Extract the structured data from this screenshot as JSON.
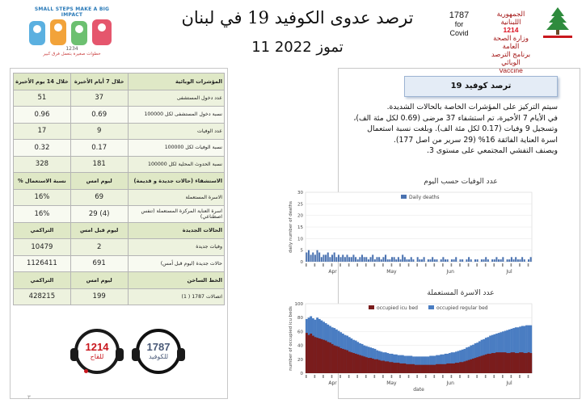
{
  "header": {
    "title": "ترصد عدوى الكوفيد 19 في لبنان",
    "date": "11 تموز 2022",
    "covid_hotline_label": "1787",
    "covid_for": "for",
    "covid_word": "Covid",
    "vaccine_hotline_label": "1214",
    "vaccine_word": "Vaccine",
    "ministry_line1": "الجمهورية اللبنانية",
    "ministry_line2": "وزارة الصحة العامة",
    "ministry_line3": "برنامج الترصد الوبائي",
    "campaign_top": "SMALL STEPS MAKE A BIG IMPACT",
    "campaign_bottom": "خطوات صغيرة بتعمل فرق كبير",
    "campaign_number": "1234"
  },
  "table": {
    "header": {
      "label": "المؤشرات الوبائية",
      "col7": "خلال 7 أيام الأخيرة",
      "col14": "خلال 14 يوم الأخيرة"
    },
    "rows": [
      {
        "label": "عدد دخول المستشفى",
        "v7": "37",
        "v14": "51"
      },
      {
        "label": "نسبة دخول المستشفى لكل 100000",
        "v7": "0.69",
        "v14": "0.96"
      },
      {
        "label": "عدد الوفيات",
        "v7": "9",
        "v14": "17"
      },
      {
        "label": "نسبة الوفيات لكل 100000",
        "v7": "0.17",
        "v14": "0.32"
      },
      {
        "label": "نسبة الحدوث المحلية لكل 100000",
        "v7": "181",
        "v14": "328"
      }
    ],
    "hosp_header": {
      "label": "الاستشفاء (حالات جديدة و قديمة)",
      "col7": "ليوم امس",
      "col14": "% نسبة الاستعمال"
    },
    "hosp_rows": [
      {
        "label": "الاسرة المستعملة",
        "v7": "69",
        "v14": "16%"
      },
      {
        "label": "اسرة العناية المركزة المستعملة (تنفس اصطناعي)",
        "v7": "29 (4)",
        "v14": "16%"
      }
    ],
    "cases_header": {
      "label": "الحالات الجديدة",
      "col7": "ليوم قبل امس",
      "col14": "التراكمي"
    },
    "cases_rows": [
      {
        "label": "وفيات جديدة",
        "v7": "2",
        "v14": "10479"
      },
      {
        "label": "حالات جديدة (ليوم قبل أمس)",
        "v7": "691",
        "v14": "1126411"
      }
    ],
    "hotline_header": {
      "label": "الخط الساخن",
      "col7": "ليوم امس",
      "col14": "التراكمي"
    },
    "hotline_rows": [
      {
        "label": "اتصالات 1787 ( 1)",
        "v7": "199",
        "v14": "428215"
      }
    ]
  },
  "hotlines": {
    "vaccine_number": "1214",
    "vaccine_label": "للقاح",
    "covid_number": "1787",
    "covid_label": "للكوفيد"
  },
  "summary": {
    "title": "ترصد كوفيد 19",
    "lines": [
      "سيتم التركيز على المؤشرات الخاصة بالحالات الشديدة.",
      "في الأيام 7 الأخيرة، تم استشفاء 37 مرضى (0.69 لكل مئة الف)، وتسجيل 9 وفيات (0.17 لكل مئة الف). وبلغت نسبة استعمال اسرة العناية الفائقة 16% (29 سرير من اصل 177).",
      "ويصنف التفشي المجتمعي على مستوى 3."
    ]
  },
  "page": {
    "number": "٣"
  },
  "chart_data": [
    {
      "type": "bar",
      "title": "عدد الوفيات حسب اليوم",
      "legend": [
        "Daily deaths"
      ],
      "ylabel": "daily number of deaths",
      "xlabel": "",
      "ylim": [
        0,
        30
      ],
      "yticks": [
        0,
        5,
        10,
        15,
        20,
        25,
        30
      ],
      "month_labels": [
        "Apr",
        "May",
        "Jun",
        "Jul"
      ],
      "color": "#4a72b0",
      "series": [
        {
          "values": [
            4,
            5,
            3,
            4,
            3,
            5,
            4,
            2,
            3,
            3,
            4,
            2,
            3,
            4,
            2,
            3,
            2,
            3,
            2,
            3,
            2,
            2,
            3,
            2,
            1,
            2,
            3,
            2,
            2,
            1,
            2,
            3,
            1,
            2,
            2,
            1,
            2,
            3,
            1,
            1,
            2,
            2,
            1,
            2,
            1,
            3,
            2,
            1,
            1,
            2,
            1,
            0,
            2,
            1,
            1,
            2,
            0,
            1,
            1,
            2,
            1,
            1,
            0,
            1,
            2,
            1,
            1,
            0,
            1,
            1,
            2,
            0,
            1,
            1,
            0,
            1,
            2,
            1,
            0,
            1,
            1,
            0,
            1,
            1,
            2,
            1,
            0,
            1,
            1,
            2,
            1,
            1,
            2,
            0,
            1,
            1,
            2,
            1,
            2,
            1,
            1,
            2,
            1,
            0,
            1,
            2
          ]
        }
      ]
    },
    {
      "type": "area",
      "title": "عدد الاسرة المستعملة",
      "legend": [
        "occupied icu bed",
        "occupied regular bed"
      ],
      "ylabel": "number of occupied icu beds",
      "xlabel": "date",
      "ylim": [
        0,
        100
      ],
      "yticks": [
        0,
        20,
        40,
        60,
        80,
        100
      ],
      "month_labels": [
        "Apr",
        "May",
        "Jun",
        "Jul"
      ],
      "colors": [
        "#7a1c1c",
        "#4a7dc2"
      ],
      "series": [
        {
          "name": "occupied icu bed",
          "values": [
            58,
            55,
            57,
            54,
            52,
            51,
            50,
            49,
            48,
            47,
            45,
            44,
            42,
            40,
            39,
            38,
            36,
            35,
            34,
            33,
            31,
            30,
            29,
            28,
            27,
            26,
            25,
            24,
            23,
            22,
            22,
            21,
            20,
            20,
            19,
            18,
            18,
            17,
            17,
            16,
            16,
            15,
            15,
            15,
            14,
            14,
            14,
            13,
            13,
            13,
            13,
            12,
            12,
            12,
            12,
            12,
            12,
            12,
            12,
            12,
            12,
            13,
            13,
            13,
            13,
            13,
            14,
            14,
            14,
            14,
            15,
            15,
            16,
            16,
            17,
            18,
            19,
            20,
            21,
            22,
            23,
            24,
            25,
            26,
            27,
            28,
            28,
            29,
            29,
            30,
            30,
            30,
            30,
            30,
            29,
            29,
            30,
            30,
            29,
            29,
            30,
            30,
            29,
            29,
            30,
            29
          ]
        },
        {
          "name": "occupied regular bed",
          "values": [
            78,
            80,
            82,
            79,
            77,
            80,
            78,
            76,
            74,
            72,
            70,
            68,
            66,
            65,
            63,
            61,
            59,
            57,
            55,
            54,
            52,
            50,
            48,
            47,
            45,
            43,
            42,
            40,
            39,
            38,
            37,
            36,
            35,
            33,
            32,
            31,
            30,
            30,
            29,
            28,
            28,
            27,
            27,
            26,
            26,
            26,
            25,
            25,
            25,
            25,
            24,
            24,
            24,
            24,
            24,
            24,
            24,
            24,
            25,
            25,
            25,
            26,
            26,
            27,
            27,
            28,
            28,
            29,
            30,
            30,
            31,
            32,
            33,
            34,
            35,
            37,
            38,
            40,
            41,
            43,
            44,
            46,
            48,
            49,
            51,
            52,
            54,
            55,
            56,
            57,
            58,
            59,
            60,
            61,
            62,
            63,
            64,
            65,
            66,
            66,
            67,
            68,
            68,
            69,
            69,
            69
          ]
        }
      ]
    }
  ]
}
